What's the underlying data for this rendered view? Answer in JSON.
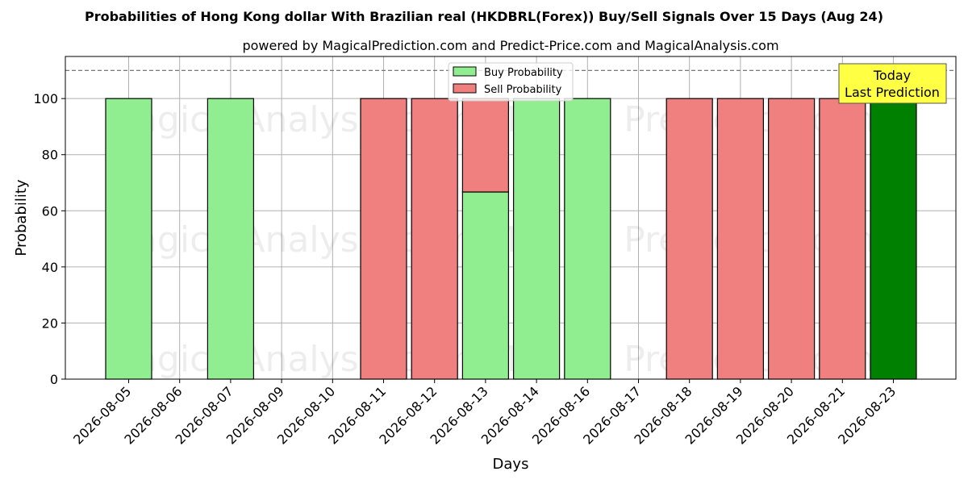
{
  "chart_data": {
    "type": "bar",
    "title": "Probabilities of Hong Kong dollar With Brazilian real (HKDBRL(Forex)) Buy/Sell Signals Over 15 Days (Aug 24)",
    "subtitle": "powered by MagicalPrediction.com and Predict-Price.com and MagicalAnalysis.com",
    "xlabel": "Days",
    "ylabel": "Probability",
    "ylim": [
      0,
      115
    ],
    "yticks": [
      0,
      20,
      40,
      60,
      80,
      100
    ],
    "grid": true,
    "legend_position": "top-center",
    "categories": [
      "2026-08-05",
      "2026-08-06",
      "2026-08-07",
      "2026-08-09",
      "2026-08-10",
      "2026-08-11",
      "2026-08-12",
      "2026-08-13",
      "2026-08-14",
      "2026-08-16",
      "2026-08-17",
      "2026-08-18",
      "2026-08-19",
      "2026-08-20",
      "2026-08-21",
      "2026-08-23"
    ],
    "series": [
      {
        "name": "Buy Probability",
        "color": "#90ee90",
        "values": [
          100,
          0,
          100,
          0,
          0,
          0,
          0,
          66.7,
          100,
          100,
          0,
          0,
          0,
          0,
          0,
          100
        ]
      },
      {
        "name": "Sell Probability",
        "color": "#f08080",
        "values": [
          0,
          0,
          0,
          0,
          0,
          100,
          100,
          33.3,
          0,
          0,
          0,
          100,
          100,
          100,
          100,
          0
        ]
      }
    ],
    "highlight": {
      "category": "2026-08-23",
      "color": "#008000",
      "label_line1": "Today",
      "label_line2": "Last Prediction",
      "box_color": "#ffff44"
    },
    "reference_line": {
      "y": 110,
      "style": "dashed"
    },
    "watermarks": [
      "MagicalAnalysis.com",
      "Magica Prediction.com"
    ]
  }
}
